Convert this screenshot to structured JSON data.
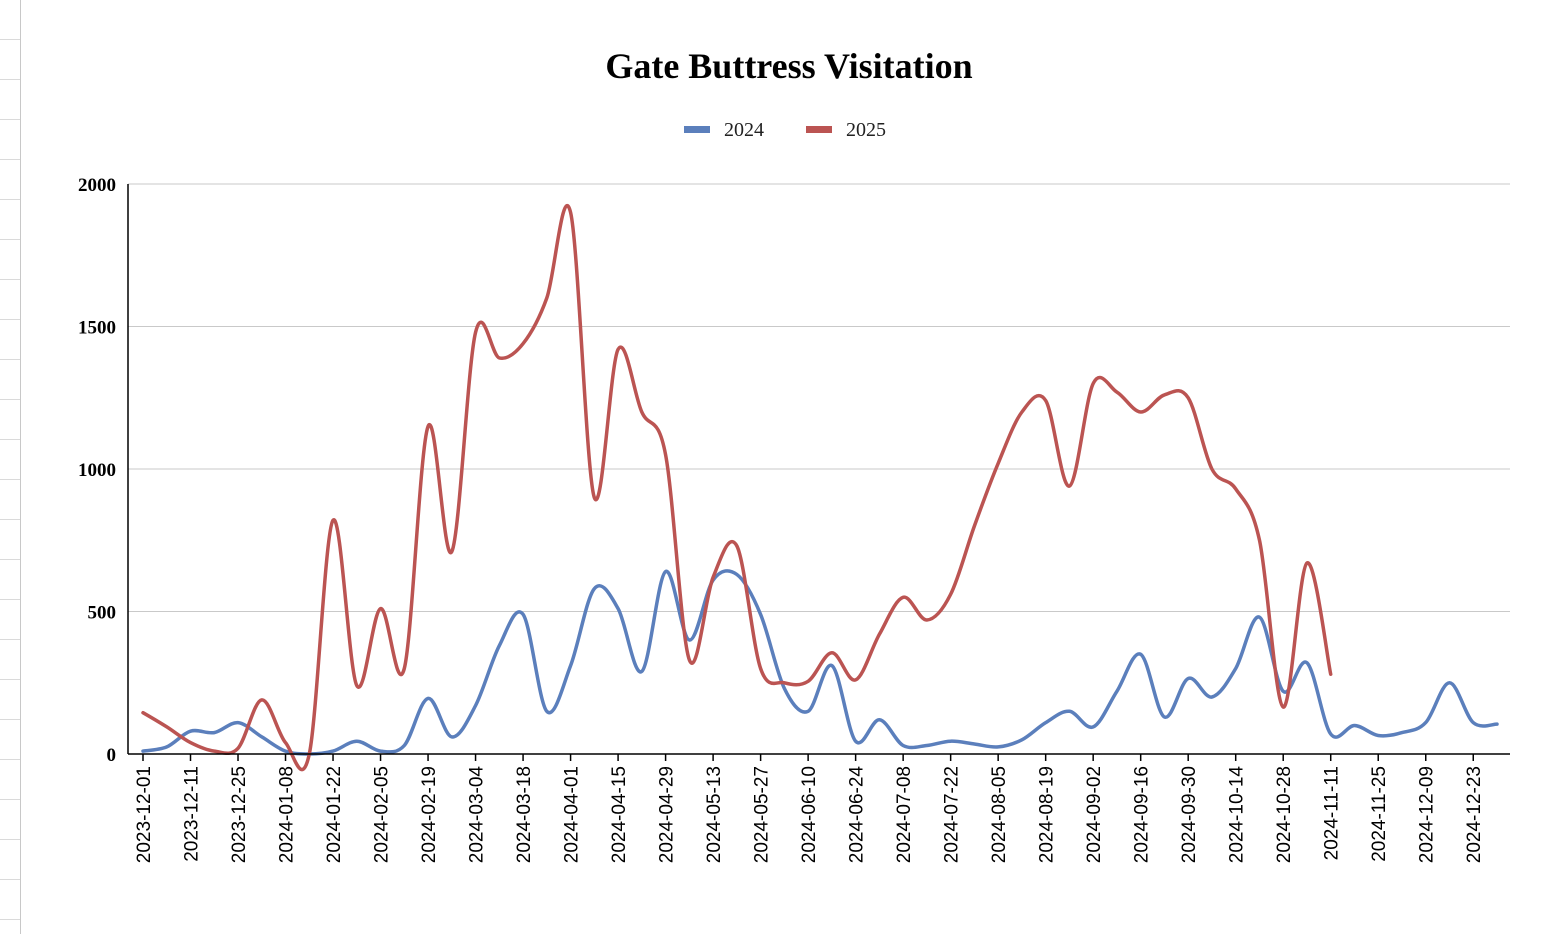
{
  "chart_data": {
    "type": "line",
    "title": "Gate Buttress Visitation",
    "xlabel": "",
    "ylabel": "",
    "ylim": [
      0,
      2000
    ],
    "yticks": [
      0,
      500,
      1000,
      1500,
      2000
    ],
    "legend_position": "top-center",
    "grid": true,
    "smooth": true,
    "x": [
      "2023-12-01",
      "2023-12-04",
      "2023-12-11",
      "2023-12-18",
      "2023-12-25",
      "2024-01-01",
      "2024-01-08",
      "2024-01-15",
      "2024-01-22",
      "2024-01-29",
      "2024-02-05",
      "2024-02-12",
      "2024-02-19",
      "2024-02-26",
      "2024-03-04",
      "2024-03-11",
      "2024-03-18",
      "2024-03-25",
      "2024-04-01",
      "2024-04-08",
      "2024-04-15",
      "2024-04-22",
      "2024-04-29",
      "2024-05-06",
      "2024-05-13",
      "2024-05-20",
      "2024-05-27",
      "2024-06-03",
      "2024-06-10",
      "2024-06-17",
      "2024-06-24",
      "2024-07-01",
      "2024-07-08",
      "2024-07-15",
      "2024-07-22",
      "2024-07-29",
      "2024-08-05",
      "2024-08-12",
      "2024-08-19",
      "2024-08-26",
      "2024-09-02",
      "2024-09-09",
      "2024-09-16",
      "2024-09-23",
      "2024-09-30",
      "2024-10-07",
      "2024-10-14",
      "2024-10-21",
      "2024-10-28",
      "2024-11-04",
      "2024-11-11",
      "2024-11-18",
      "2024-11-25",
      "2024-12-02",
      "2024-12-09",
      "2024-12-16",
      "2024-12-23",
      "2024-12-30"
    ],
    "x_tick_labels": [
      "2023-12-01",
      "2023-12-11",
      "2023-12-25",
      "2024-01-08",
      "2024-01-22",
      "2024-02-05",
      "2024-02-19",
      "2024-03-04",
      "2024-03-18",
      "2024-04-01",
      "2024-04-15",
      "2024-04-29",
      "2024-05-13",
      "2024-05-27",
      "2024-06-10",
      "2024-06-24",
      "2024-07-08",
      "2024-07-22",
      "2024-08-05",
      "2024-08-19",
      "2024-09-02",
      "2024-09-16",
      "2024-09-30",
      "2024-10-14",
      "2024-10-28",
      "2024-11-11",
      "2024-11-25",
      "2024-12-09",
      "2024-12-23"
    ],
    "series": [
      {
        "name": "2024",
        "color": "#5b7fbc",
        "values": [
          10,
          25,
          80,
          75,
          110,
          60,
          10,
          0,
          10,
          45,
          10,
          30,
          195,
          60,
          170,
          380,
          490,
          150,
          310,
          580,
          510,
          290,
          640,
          400,
          610,
          630,
          490,
          230,
          150,
          310,
          45,
          120,
          30,
          30,
          45,
          35,
          25,
          50,
          110,
          150,
          95,
          220,
          350,
          130,
          265,
          200,
          300,
          480,
          220,
          320,
          70,
          100,
          65,
          75,
          110,
          250,
          110,
          105
        ]
      },
      {
        "name": "2025",
        "color": "#bb5452",
        "values": [
          145,
          95,
          40,
          10,
          20,
          190,
          40,
          0,
          820,
          240,
          510,
          300,
          1150,
          710,
          1480,
          1390,
          1440,
          1600,
          1900,
          900,
          1420,
          1200,
          1050,
          330,
          620,
          730,
          300,
          250,
          255,
          355,
          260,
          420,
          550,
          470,
          560,
          800,
          1020,
          1200,
          1240,
          940,
          1300,
          1270,
          1200,
          1260,
          1250,
          1000,
          930,
          750,
          165,
          670,
          280,
          null,
          null,
          null,
          null,
          null,
          null,
          null
        ]
      }
    ]
  }
}
